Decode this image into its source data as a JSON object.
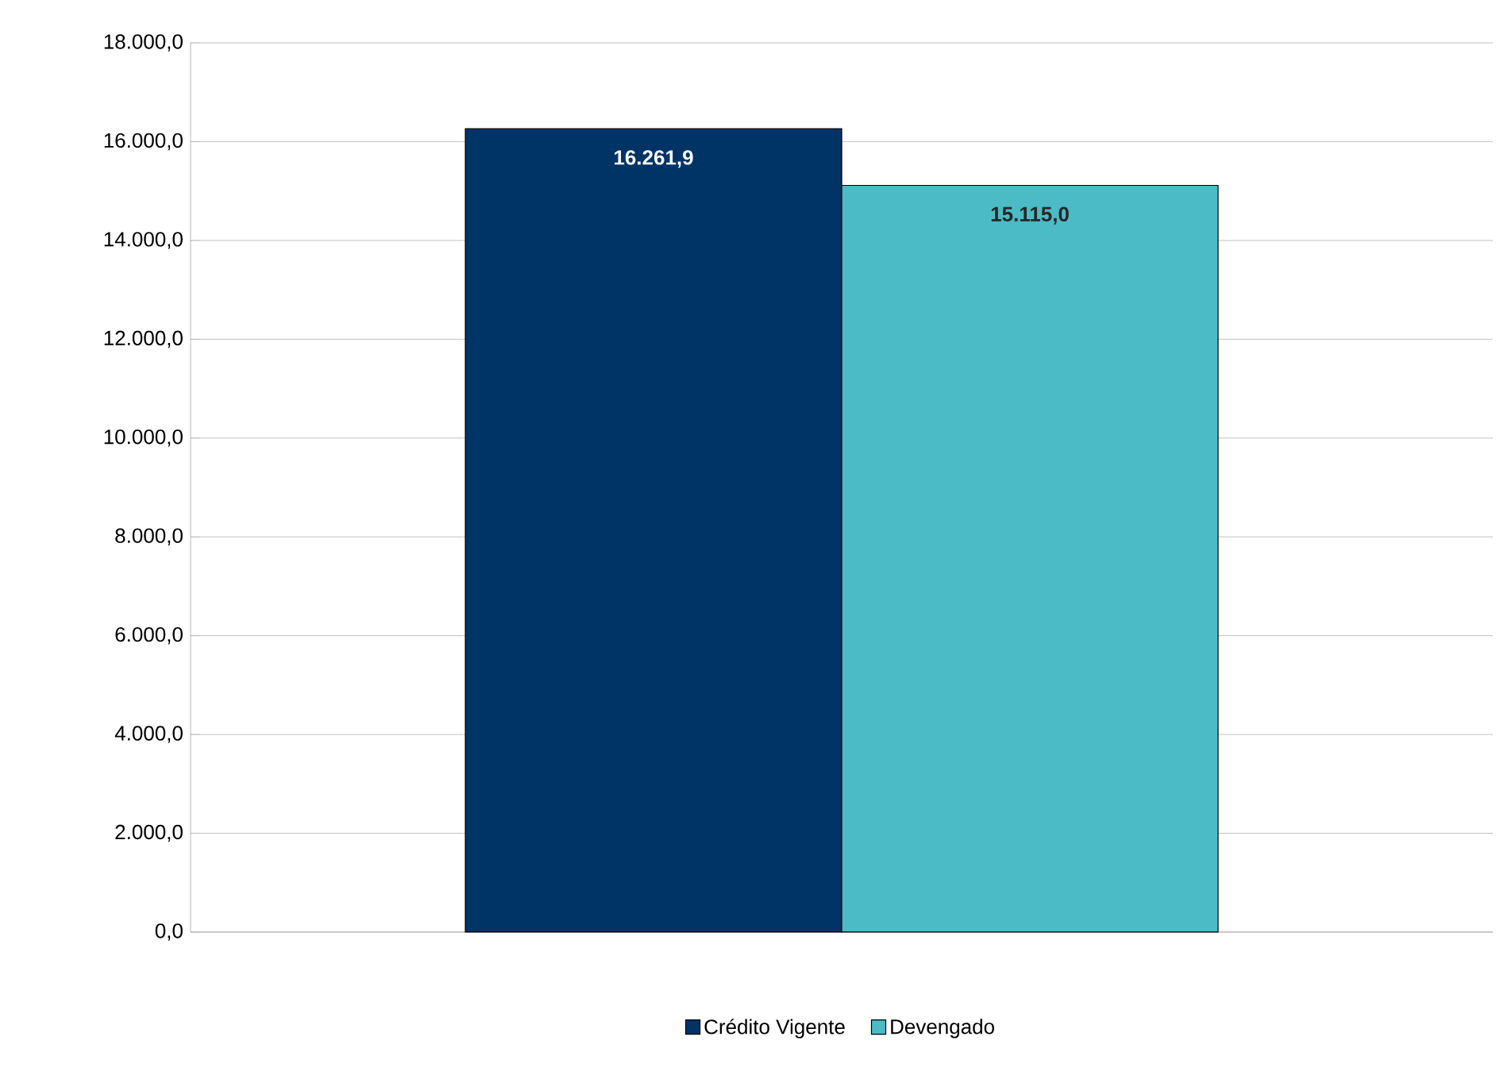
{
  "chart_data": {
    "type": "bar",
    "categories": [
      null
    ],
    "series": [
      {
        "name": "Crédito Vigente",
        "color": "#003366",
        "values": [
          16261.9
        ],
        "value_labels": [
          "16.261,9"
        ]
      },
      {
        "name": "Devengado",
        "color": "#4bbbc6",
        "values": [
          15115.0
        ],
        "value_labels": [
          "15.115,0"
        ]
      }
    ],
    "ylim": [
      0,
      18000
    ],
    "yticks": [
      {
        "value": 0,
        "label": "0,0"
      },
      {
        "value": 2000,
        "label": "2.000,0"
      },
      {
        "value": 4000,
        "label": "4.000,0"
      },
      {
        "value": 6000,
        "label": "6.000,0"
      },
      {
        "value": 8000,
        "label": "8.000,0"
      },
      {
        "value": 10000,
        "label": "10.000,0"
      },
      {
        "value": 12000,
        "label": "12.000,0"
      },
      {
        "value": 14000,
        "label": "14.000,0"
      },
      {
        "value": 16000,
        "label": "16.000,0"
      },
      {
        "value": 18000,
        "label": "18.000,0"
      }
    ],
    "grid": "y",
    "legend": "bottom",
    "tick_labels": "y"
  }
}
